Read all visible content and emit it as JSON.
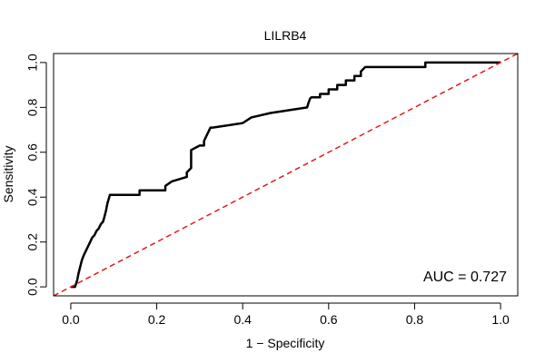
{
  "chart_data": {
    "type": "line",
    "title": "LILRB4",
    "xlabel": "1 − Specificity",
    "ylabel": "Sensitivity",
    "xlim": [
      -0.04,
      1.04
    ],
    "ylim": [
      -0.04,
      1.04
    ],
    "xticks": [
      0.0,
      0.2,
      0.4,
      0.6,
      0.8,
      1.0
    ],
    "yticks": [
      0.0,
      0.2,
      0.4,
      0.6,
      0.8,
      1.0
    ],
    "xtick_labels": [
      "0.0",
      "0.2",
      "0.4",
      "0.6",
      "0.8",
      "1.0"
    ],
    "ytick_labels": [
      "0.0",
      "0.2",
      "0.4",
      "0.6",
      "0.8",
      "1.0"
    ],
    "grid": false,
    "annotation": "AUC = 0.727",
    "series": [
      {
        "style": "solid",
        "color": "#000000",
        "x": [
          0.0,
          0.01,
          0.015,
          0.018,
          0.022,
          0.026,
          0.03,
          0.035,
          0.04,
          0.045,
          0.05,
          0.055,
          0.06,
          0.065,
          0.07,
          0.075,
          0.078,
          0.082,
          0.085,
          0.088,
          0.091,
          0.16,
          0.16,
          0.22,
          0.22,
          0.235,
          0.235,
          0.27,
          0.27,
          0.28,
          0.28,
          0.3,
          0.3,
          0.31,
          0.31,
          0.315,
          0.32,
          0.325,
          0.33,
          0.4,
          0.4,
          0.42,
          0.42,
          0.465,
          0.465,
          0.55,
          0.553,
          0.557,
          0.56,
          0.58,
          0.58,
          0.6,
          0.6,
          0.62,
          0.62,
          0.64,
          0.64,
          0.66,
          0.66,
          0.675,
          0.675,
          0.685,
          0.825,
          0.825,
          1.0
        ],
        "y": [
          0.0,
          0.0,
          0.03,
          0.06,
          0.09,
          0.12,
          0.14,
          0.16,
          0.18,
          0.2,
          0.22,
          0.23,
          0.25,
          0.26,
          0.28,
          0.29,
          0.31,
          0.34,
          0.37,
          0.39,
          0.41,
          0.41,
          0.43,
          0.43,
          0.45,
          0.47,
          0.47,
          0.49,
          0.51,
          0.53,
          0.61,
          0.63,
          0.63,
          0.63,
          0.65,
          0.67,
          0.69,
          0.71,
          0.71,
          0.73,
          0.73,
          0.755,
          0.755,
          0.775,
          0.775,
          0.8,
          0.82,
          0.84,
          0.845,
          0.845,
          0.86,
          0.86,
          0.88,
          0.88,
          0.9,
          0.9,
          0.92,
          0.92,
          0.94,
          0.94,
          0.96,
          0.98,
          0.98,
          1.0,
          1.0
        ]
      },
      {
        "style": "dashed",
        "color": "#e41a1c",
        "x": [
          -0.04,
          1.04
        ],
        "y": [
          -0.04,
          1.04
        ]
      }
    ]
  }
}
